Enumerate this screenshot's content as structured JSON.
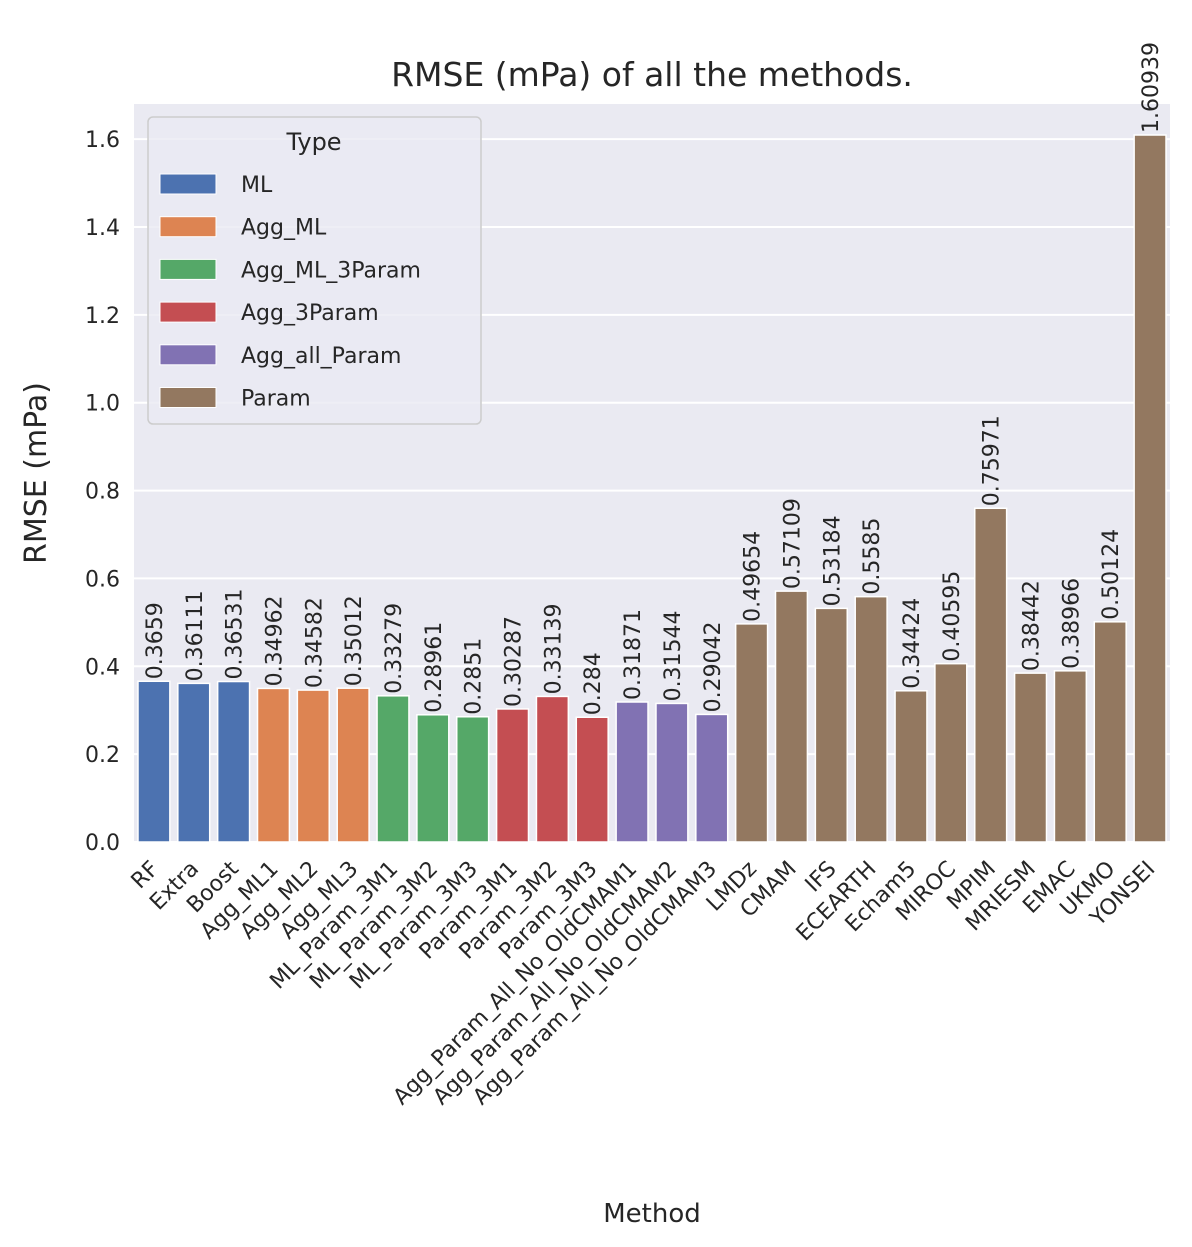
{
  "chart_data": {
    "type": "bar",
    "title": "RMSE (mPa) of all the methods.",
    "xlabel": "Method",
    "ylabel": "RMSE (mPa)",
    "ylim": [
      0,
      1.68
    ],
    "yticks": [
      "0.0",
      "0.2",
      "0.4",
      "0.6",
      "0.8",
      "1.0",
      "1.2",
      "1.4",
      "1.6"
    ],
    "grid": true,
    "legend": {
      "title": "Type",
      "placement": "top-left",
      "entries": [
        {
          "name": "ML",
          "color": "#4c72b0"
        },
        {
          "name": "Agg_ML",
          "color": "#dd8452"
        },
        {
          "name": "Agg_ML_3Param",
          "color": "#55a868"
        },
        {
          "name": "Agg_3Param",
          "color": "#c44e52"
        },
        {
          "name": "Agg_all_Param",
          "color": "#8172b3"
        },
        {
          "name": "Param",
          "color": "#937860"
        }
      ]
    },
    "bars": [
      {
        "category": "RF",
        "value": 0.3659,
        "label": "0.3659",
        "type": "ML"
      },
      {
        "category": "Extra",
        "value": 0.36111,
        "label": "0.36111",
        "type": "ML"
      },
      {
        "category": "Boost",
        "value": 0.36531,
        "label": "0.36531",
        "type": "ML"
      },
      {
        "category": "Agg_ML1",
        "value": 0.34962,
        "label": "0.34962",
        "type": "Agg_ML"
      },
      {
        "category": "Agg_ML2",
        "value": 0.34582,
        "label": "0.34582",
        "type": "Agg_ML"
      },
      {
        "category": "Agg_ML3",
        "value": 0.35012,
        "label": "0.35012",
        "type": "Agg_ML"
      },
      {
        "category": "ML_Param_3M1",
        "value": 0.33279,
        "label": "0.33279",
        "type": "Agg_ML_3Param"
      },
      {
        "category": "ML_Param_3M2",
        "value": 0.28961,
        "label": "0.28961",
        "type": "Agg_ML_3Param"
      },
      {
        "category": "ML_Param_3M3",
        "value": 0.2851,
        "label": "0.2851",
        "type": "Agg_ML_3Param"
      },
      {
        "category": "Param_3M1",
        "value": 0.30287,
        "label": "0.30287",
        "type": "Agg_3Param"
      },
      {
        "category": "Param_3M2",
        "value": 0.33139,
        "label": "0.33139",
        "type": "Agg_3Param"
      },
      {
        "category": "Param_3M3",
        "value": 0.284,
        "label": "0.284",
        "type": "Agg_3Param"
      },
      {
        "category": "Agg_Param_All_No_OldCMAM1",
        "value": 0.31871,
        "label": "0.31871",
        "type": "Agg_all_Param"
      },
      {
        "category": "Agg_Param_All_No_OldCMAM2",
        "value": 0.31544,
        "label": "0.31544",
        "type": "Agg_all_Param"
      },
      {
        "category": "Agg_Param_All_No_OldCMAM3",
        "value": 0.29042,
        "label": "0.29042",
        "type": "Agg_all_Param"
      },
      {
        "category": "LMDz",
        "value": 0.49654,
        "label": "0.49654",
        "type": "Param"
      },
      {
        "category": "CMAM",
        "value": 0.57109,
        "label": "0.57109",
        "type": "Param"
      },
      {
        "category": "IFS",
        "value": 0.53184,
        "label": "0.53184",
        "type": "Param"
      },
      {
        "category": "ECEARTH",
        "value": 0.5585,
        "label": "0.5585",
        "type": "Param"
      },
      {
        "category": "Echam5",
        "value": 0.34424,
        "label": "0.34424",
        "type": "Param"
      },
      {
        "category": "MIROC",
        "value": 0.40595,
        "label": "0.40595",
        "type": "Param"
      },
      {
        "category": "MPIM",
        "value": 0.75971,
        "label": "0.75971",
        "type": "Param"
      },
      {
        "category": "MRIESM",
        "value": 0.38442,
        "label": "0.38442",
        "type": "Param"
      },
      {
        "category": "EMAC",
        "value": 0.38966,
        "label": "0.38966",
        "type": "Param"
      },
      {
        "category": "UKMO",
        "value": 0.50124,
        "label": "0.50124",
        "type": "Param"
      },
      {
        "category": "YONSEI",
        "value": 1.60939,
        "label": "1.60939",
        "type": "Param"
      }
    ]
  }
}
